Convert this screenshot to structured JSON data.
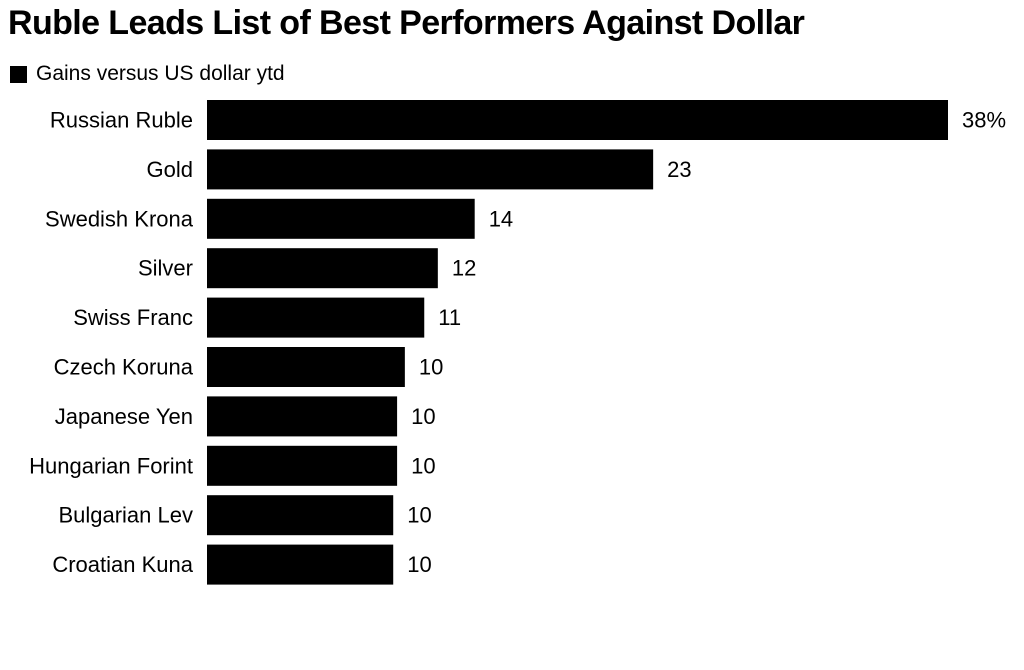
{
  "chart_data": {
    "type": "bar",
    "orientation": "horizontal",
    "title": "Ruble Leads List of Best Performers Against Dollar",
    "legend": {
      "label": "Gains versus US dollar ytd",
      "placement": "top-left"
    },
    "categories": [
      "Russian Ruble",
      "Gold",
      "Swedish Krona",
      "Silver",
      "Swiss Franc",
      "Czech Koruna",
      "Japanese Yen",
      "Hungarian Forint",
      "Bulgarian Lev",
      "Croatian Kuna"
    ],
    "series": [
      {
        "name": "Gains versus US dollar ytd",
        "values": [
          38.2,
          23.0,
          13.8,
          11.9,
          11.2,
          10.2,
          9.8,
          9.8,
          9.6,
          9.6
        ],
        "labels": [
          "38%",
          "23",
          "14",
          "12",
          "11",
          "10",
          "10",
          "10",
          "10",
          "10"
        ],
        "color": "#000000"
      }
    ],
    "xlim": [
      0,
      38.2
    ],
    "unit": "%",
    "grid": false
  }
}
